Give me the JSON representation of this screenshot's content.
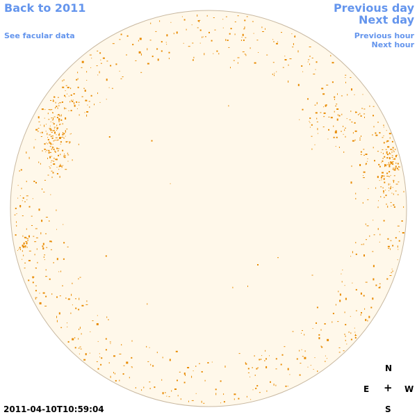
{
  "nav": {
    "back_label": "Back to 2011",
    "facular_label": "See facular data",
    "previous_day_label": "Previous day",
    "next_day_label": "Next day",
    "previous_hour_label": "Previous hour",
    "next_hour_label": "Next hour"
  },
  "observation": {
    "timestamp": "2011-04-10T10:59:04"
  },
  "compass": {
    "north": "N",
    "east": "E",
    "west": "W",
    "south": "S",
    "center": "+"
  },
  "colors": {
    "link": "#6495ed",
    "disk_fill": "#fff8ea",
    "disk_edge": "#c8b8a0",
    "facula_spot": "#e88a00"
  },
  "icons": {
    "solar_disk": "sun-disk-icon"
  }
}
